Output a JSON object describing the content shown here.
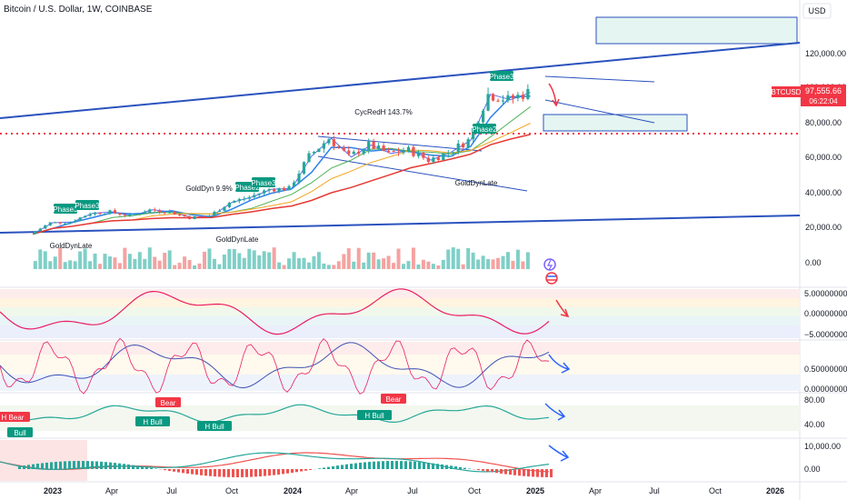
{
  "header": {
    "symbol_title": "Bitcoin / U.S. Dollar, 1W, COINBASE"
  },
  "price_scale": {
    "currency": "USD",
    "ticks": [
      "120,000.00",
      "100,000.00",
      "80,000.00",
      "60,000.00",
      "40,000.00",
      "20,000.00",
      "0.00"
    ]
  },
  "last_price": {
    "symbol": "BTCUSD",
    "price": "97,555.66",
    "countdown": "06:22:04"
  },
  "time_axis": {
    "labels": [
      "2023",
      "Apr",
      "Jul",
      "Oct",
      "2024",
      "Apr",
      "Jul",
      "Oct",
      "2025",
      "Apr",
      "Jul",
      "Oct",
      "2026"
    ]
  },
  "annotations": [
    {
      "text": "Phase3",
      "kind": "tag"
    },
    {
      "text": "Phase3",
      "kind": "tag"
    },
    {
      "text": "Phase2",
      "kind": "tag"
    },
    {
      "text": "Phase3",
      "kind": "tag"
    },
    {
      "text": "Phase2",
      "kind": "tag"
    },
    {
      "text": "Phase3",
      "kind": "tag"
    },
    {
      "text": "GoldDynLate",
      "kind": "label"
    },
    {
      "text": "GoldDynLate",
      "kind": "label"
    },
    {
      "text": "GoldDynLate",
      "kind": "label"
    },
    {
      "text": "GoldDyn 9.9%",
      "kind": "label"
    },
    {
      "text": "CycRedH 143.7%",
      "kind": "label"
    }
  ],
  "panes": {
    "pane1": {
      "ticks": [
        "5.00000000",
        "0.00000000",
        "−5.00000000"
      ]
    },
    "pane2": {
      "ticks": [
        "0.50000000",
        "0.00000000"
      ]
    },
    "pane3": {
      "ticks": [
        "80.00",
        "40.00"
      ],
      "labels": [
        {
          "text": "H Bear",
          "tone": "bear"
        },
        {
          "text": "Bull",
          "tone": "bull"
        },
        {
          "text": "Bear",
          "tone": "bear"
        },
        {
          "text": "H Bull",
          "tone": "bull"
        },
        {
          "text": "H Bull",
          "tone": "bull"
        },
        {
          "text": "Bear",
          "tone": "bear"
        },
        {
          "text": "H Bull",
          "tone": "bull"
        }
      ]
    },
    "pane4": {
      "ticks": [
        "10,000.00",
        "0.00"
      ]
    }
  },
  "colors": {
    "up": "#26a69a",
    "down": "#ef5350",
    "trend_line": "#2a52be",
    "price_label": "#f23645",
    "tag_green": "#089981",
    "tag_red": "#f23645"
  },
  "chart_data": {
    "type": "candlestick",
    "title": "Bitcoin / U.S. Dollar, 1W, COINBASE",
    "x_range": [
      "2022-11",
      "2026-02"
    ],
    "y_range": [
      0,
      135000
    ],
    "series": [
      {
        "name": "BTCUSD",
        "x": [
          "2022-12",
          "2023-01",
          "2023-02",
          "2023-03",
          "2023-04",
          "2023-05",
          "2023-06",
          "2023-07",
          "2023-08",
          "2023-09",
          "2023-10",
          "2023-11",
          "2023-12",
          "2024-01",
          "2024-02",
          "2024-03",
          "2024-04",
          "2024-05",
          "2024-06",
          "2024-07",
          "2024-08",
          "2024-09",
          "2024-10",
          "2024-11",
          "2024-12",
          "2025-01"
        ],
        "close": [
          16600,
          23100,
          23500,
          28500,
          29300,
          27100,
          30500,
          29300,
          26000,
          27000,
          34700,
          37700,
          42300,
          42600,
          61100,
          71300,
          60700,
          67500,
          62700,
          64600,
          58900,
          63300,
          70200,
          96500,
          93400,
          97556
        ]
      }
    ],
    "last_close": 97555.66
  }
}
